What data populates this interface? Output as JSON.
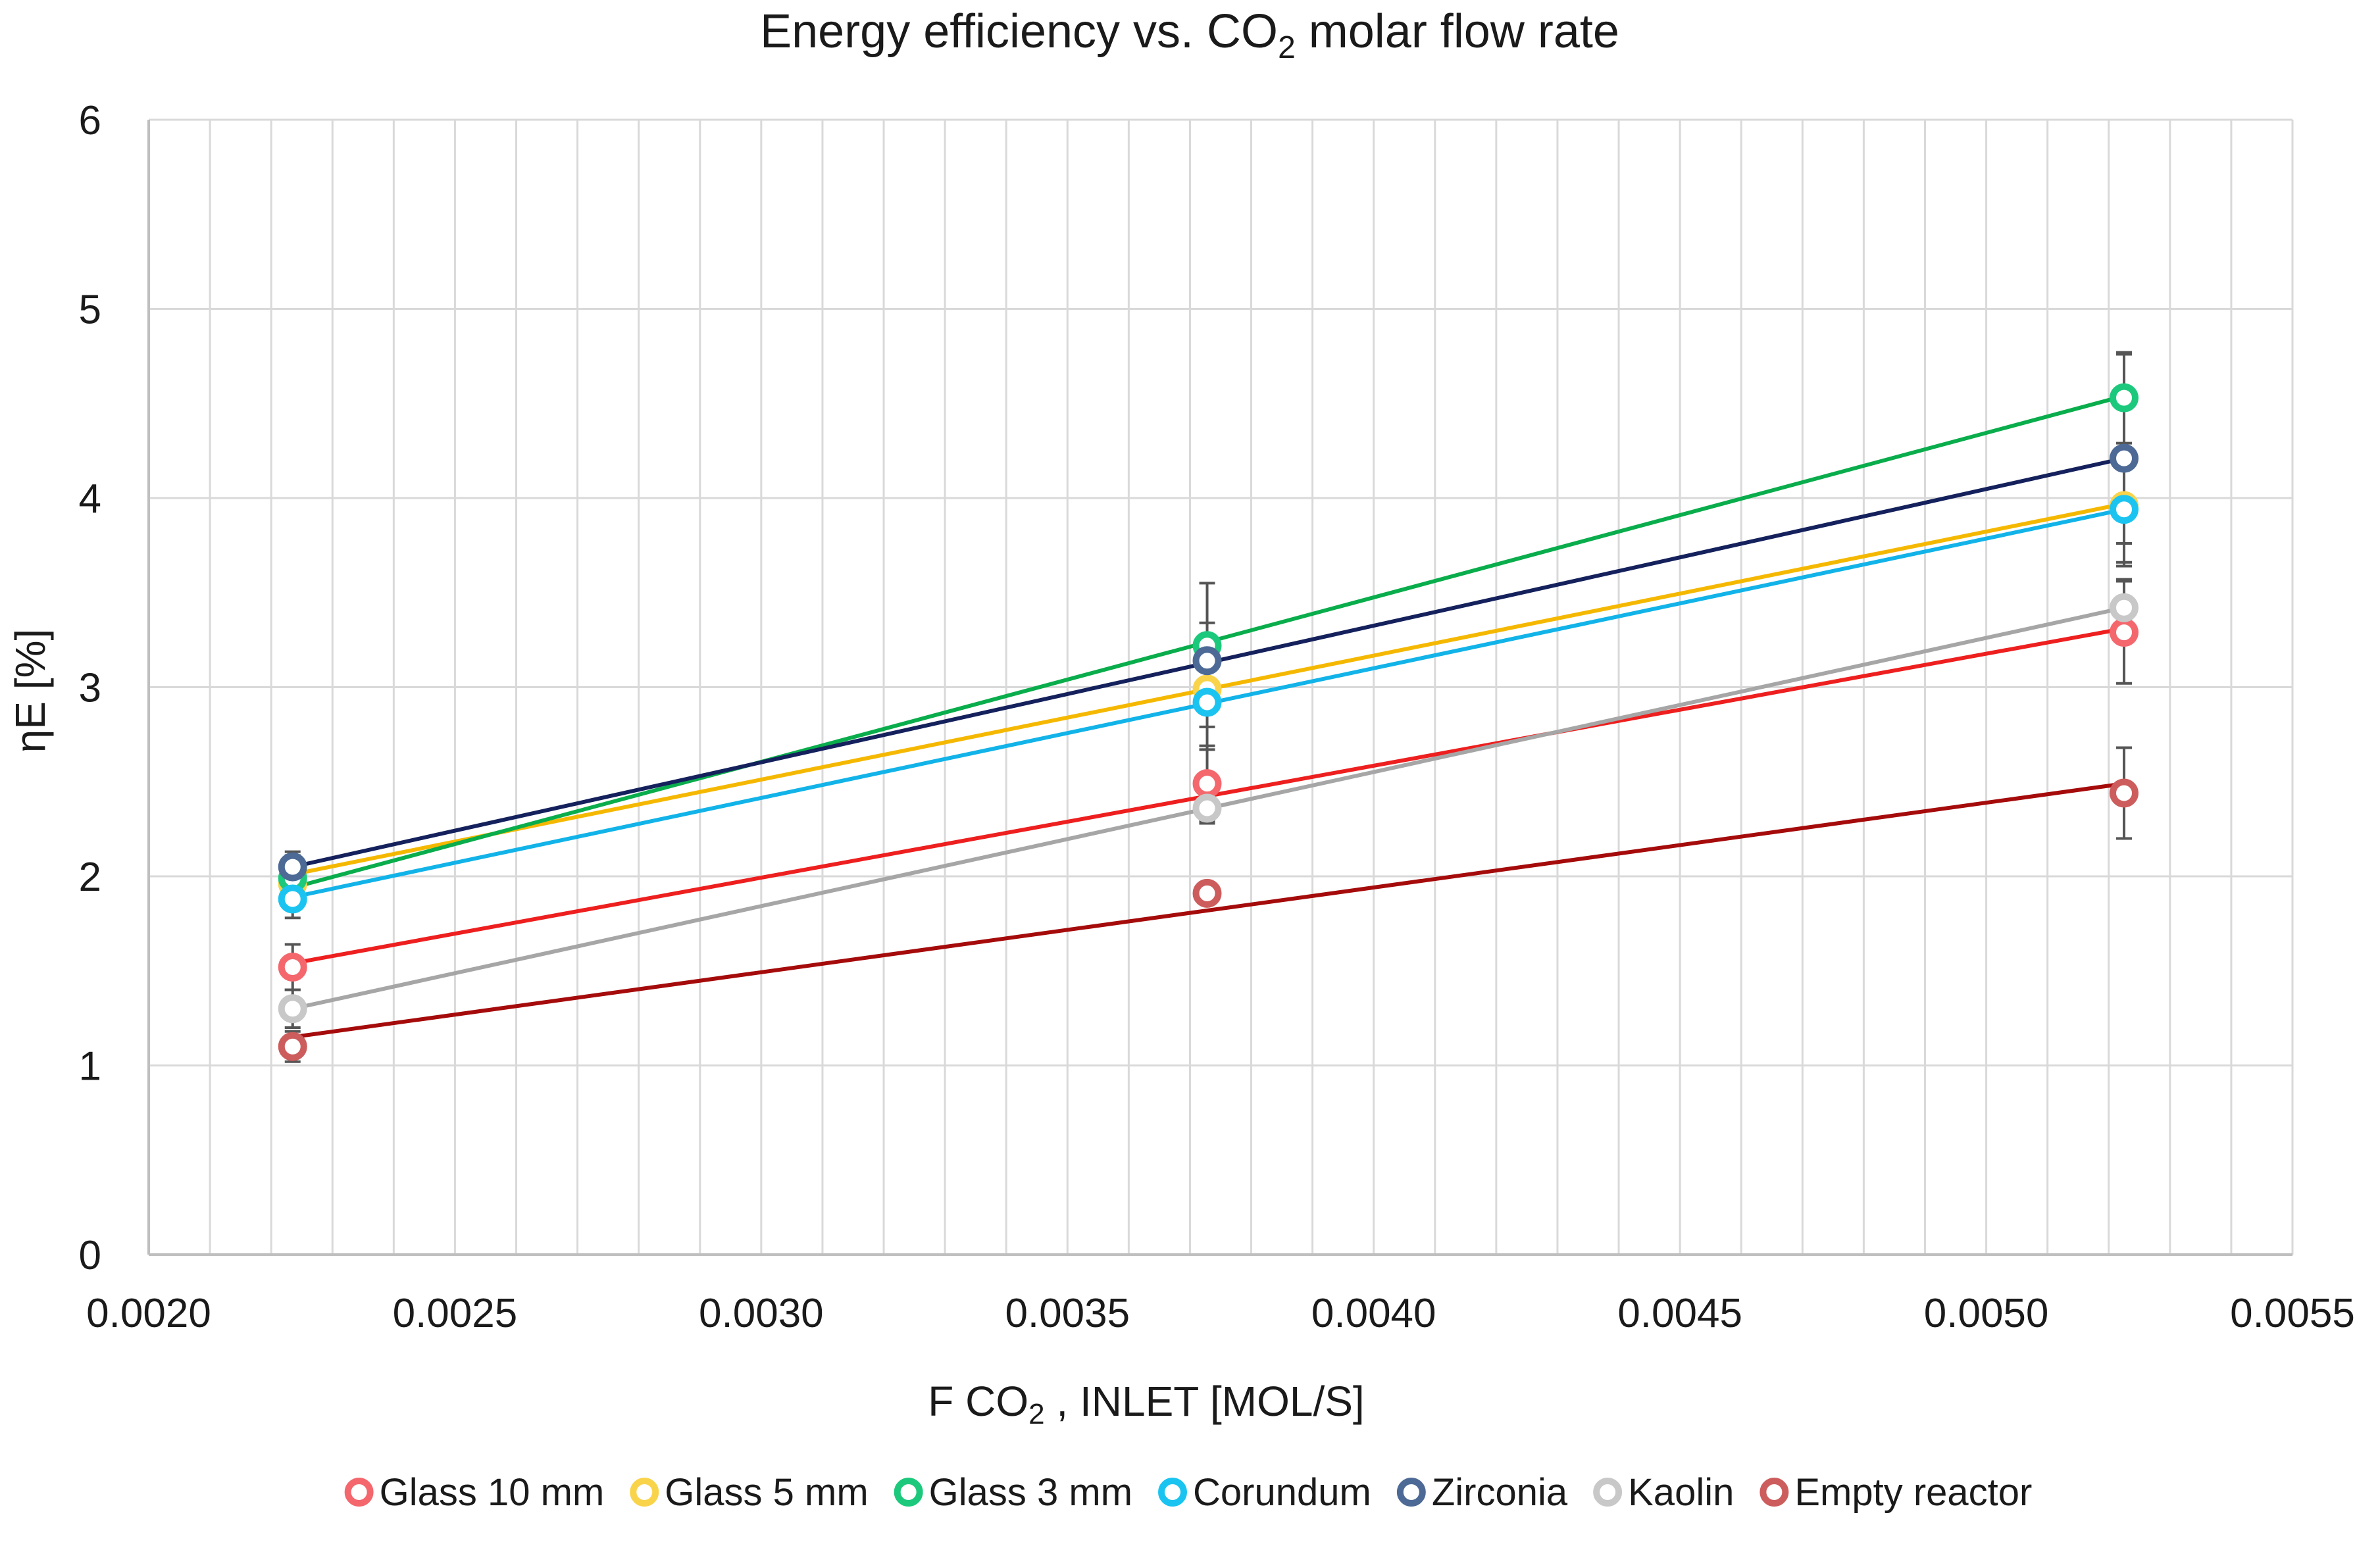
{
  "chart_data": {
    "type": "scatter",
    "title_main": "Energy efficiency vs. CO",
    "title_sub": "2",
    "title_rest": " molar flow rate",
    "xlabel_pre": "F CO",
    "xlabel_sub": "2",
    "xlabel_post": " , INLET [MOL/S]",
    "ylabel": "ηE [%]",
    "xlim": [
      0.002,
      0.0055
    ],
    "ylim": [
      0,
      6
    ],
    "x_major_ticks": [
      0.002,
      0.0025,
      0.003,
      0.0035,
      0.004,
      0.0045,
      0.005,
      0.0055
    ],
    "x_tick_labels": [
      "0.0020",
      "0.0025",
      "0.0030",
      "0.0035",
      "0.0040",
      "0.0045",
      "0.0050",
      "0.0055"
    ],
    "x_minor_step": 0.0001,
    "y_major_ticks": [
      0,
      1,
      2,
      3,
      4,
      5,
      6
    ],
    "y_tick_labels": [
      "0",
      "1",
      "2",
      "3",
      "4",
      "5",
      "6"
    ],
    "grid": true,
    "legend_position": "bottom",
    "x": [
      0.002235,
      0.003728,
      0.005225
    ],
    "series": [
      {
        "name": "Glass 10 mm",
        "marker_color": "#f4676d",
        "line_color": "#ee1f1f",
        "values": [
          1.52,
          2.49,
          3.29
        ],
        "errors": [
          0.12,
          0.2,
          0.27
        ],
        "fit": [
          1.54,
          3.31
        ]
      },
      {
        "name": "Glass 5 mm",
        "marker_color": "#f9d44b",
        "line_color": "#f5b800",
        "values": [
          1.96,
          2.99,
          3.96
        ],
        "errors": [
          0.1,
          0.2,
          0.2
        ],
        "fit": [
          2.01,
          3.97
        ]
      },
      {
        "name": "Glass 3 mm",
        "marker_color": "#1cc97c",
        "line_color": "#0aad4c",
        "values": [
          1.99,
          3.22,
          4.53
        ],
        "errors": [
          0.12,
          0.33,
          0.24
        ],
        "fit": [
          1.94,
          4.54
        ]
      },
      {
        "name": "Corundum",
        "marker_color": "#1bc4f0",
        "line_color": "#12b3e8",
        "values": [
          1.88,
          2.92,
          3.94
        ],
        "errors": [
          0.1,
          0.25,
          0.3
        ],
        "fit": [
          1.89,
          3.94
        ]
      },
      {
        "name": "Zirconia",
        "marker_color": "#4d6a96",
        "line_color": "#14215c",
        "values": [
          2.05,
          3.14,
          4.21
        ],
        "errors": [
          0.08,
          0.2,
          0.55
        ],
        "fit": [
          2.05,
          4.21
        ]
      },
      {
        "name": "Kaolin",
        "marker_color": "#c8c8c8",
        "line_color": "#a6a6a6",
        "values": [
          1.3,
          2.36,
          3.42
        ],
        "errors": [
          0.1,
          0.08,
          0.15
        ],
        "fit": [
          1.3,
          3.42
        ]
      },
      {
        "name": "Empty reactor",
        "marker_color": "#cd5c5c",
        "line_color": "#a50b0b",
        "values": [
          1.1,
          1.91,
          2.44
        ],
        "errors": [
          0.08,
          0.03,
          0.24
        ],
        "fit": [
          1.15,
          2.49
        ]
      }
    ]
  }
}
